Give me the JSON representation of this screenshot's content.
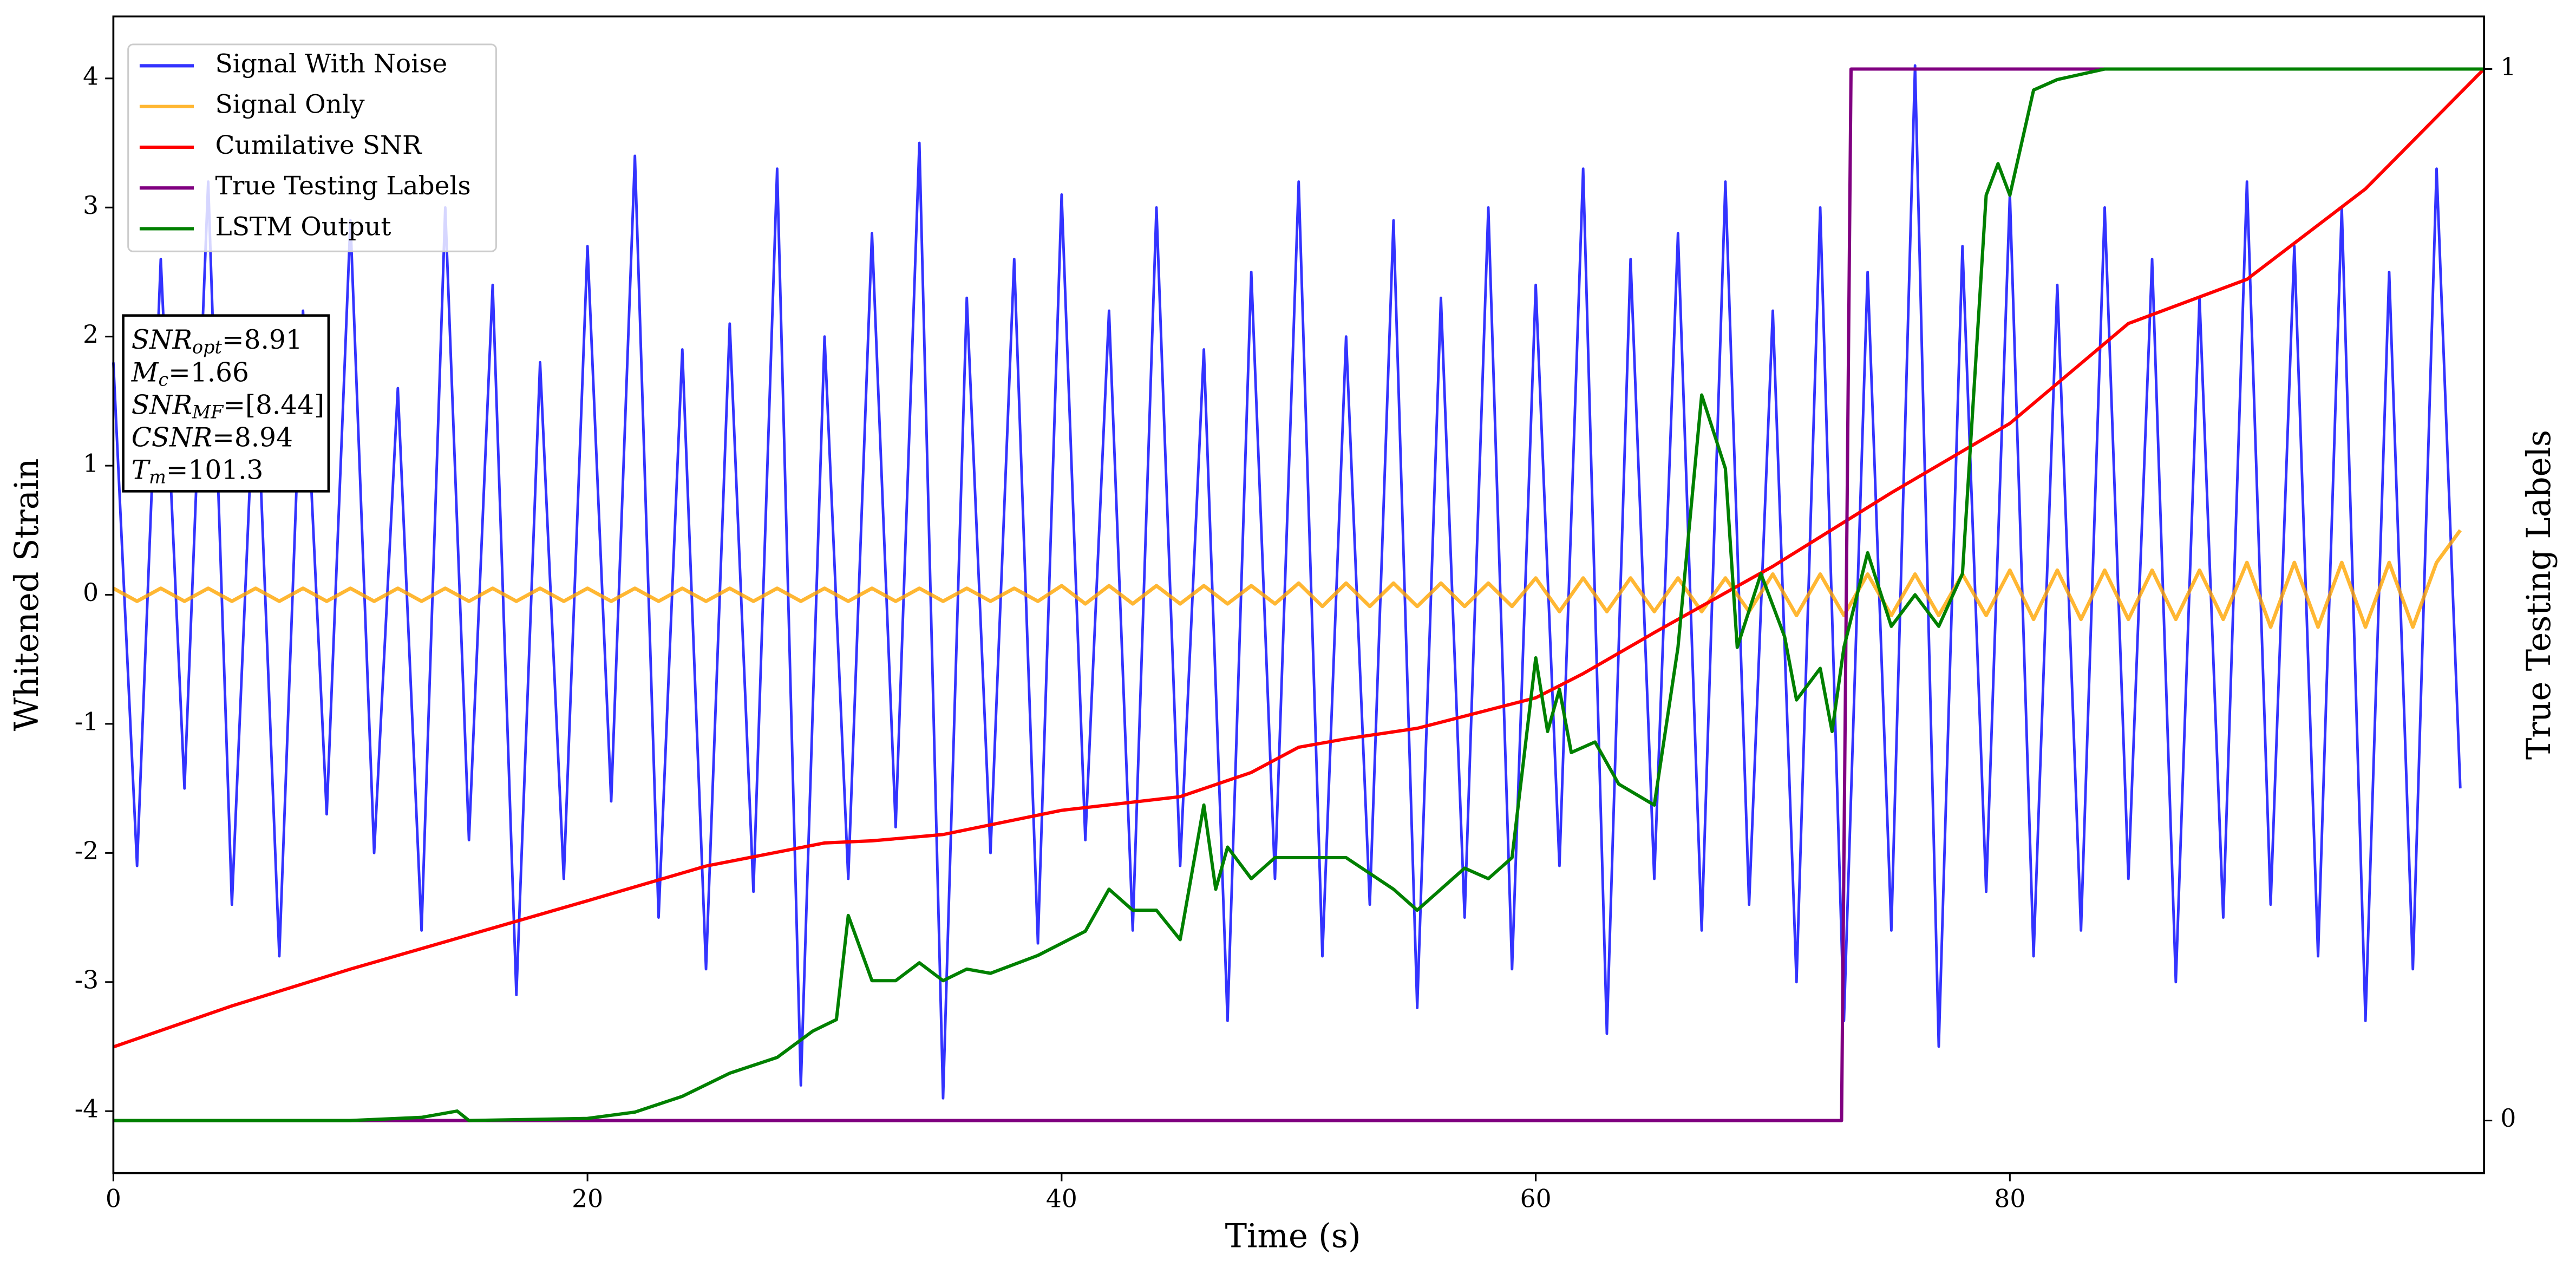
{
  "chart_data": {
    "type": "line",
    "xlabel": "Time (s)",
    "ylabel": "Whitened Strain",
    "y2label": "True Testing Labels",
    "xlim": [
      0,
      100
    ],
    "ylim": [
      -4.48,
      4.48
    ],
    "y2lim": [
      -0.05,
      1.05
    ],
    "xticks": [
      0,
      20,
      40,
      60,
      80
    ],
    "yticks": [
      -4,
      -3,
      -2,
      -1,
      0,
      1,
      2,
      3,
      4
    ],
    "y2ticks": [
      0,
      1
    ],
    "legend": "upper left",
    "x": [
      0,
      1,
      2,
      3,
      4,
      5,
      6,
      7,
      8,
      9,
      10,
      11,
      12,
      13,
      14,
      15,
      16,
      17,
      18,
      19,
      20,
      21,
      22,
      23,
      24,
      25,
      26,
      27,
      28,
      29,
      30,
      31,
      32,
      33,
      34,
      35,
      36,
      37,
      38,
      39,
      40,
      41,
      42,
      43,
      44,
      45,
      46,
      47,
      48,
      49,
      50,
      51,
      52,
      53,
      54,
      55,
      56,
      57,
      58,
      59,
      60,
      61,
      62,
      63,
      64,
      65,
      66,
      67,
      68,
      69,
      70,
      71,
      72,
      73,
      74,
      75,
      76,
      77,
      78,
      79,
      80,
      81,
      82,
      83,
      84,
      85,
      86,
      87,
      88,
      89,
      90,
      91,
      92,
      93,
      94,
      95,
      96,
      97,
      98,
      99
    ],
    "series": [
      {
        "name": "Signal With Noise",
        "color": "#0000ff",
        "values": [
          1.8,
          -2.1,
          2.6,
          -1.5,
          3.2,
          -2.4,
          1.9,
          -2.8,
          2.2,
          -1.7,
          2.9,
          -2.0,
          1.6,
          -2.6,
          3.0,
          -1.9,
          2.4,
          -3.1,
          1.8,
          -2.2,
          2.7,
          -1.6,
          3.4,
          -2.5,
          1.9,
          -2.9,
          2.1,
          -2.3,
          3.3,
          -3.8,
          2.0,
          -2.2,
          2.8,
          -1.8,
          3.5,
          -3.9,
          2.3,
          -2.0,
          2.6,
          -2.7,
          3.1,
          -1.9,
          2.2,
          -2.6,
          3.0,
          -2.1,
          1.9,
          -3.3,
          2.5,
          -2.2,
          3.2,
          -2.8,
          2.0,
          -2.4,
          2.9,
          -3.2,
          2.3,
          -2.5,
          3.0,
          -2.9,
          2.4,
          -2.1,
          3.3,
          -3.4,
          2.6,
          -2.2,
          2.8,
          -2.6,
          3.2,
          -2.4,
          2.2,
          -3.0,
          3.0,
          -3.3,
          2.5,
          -2.6,
          4.1,
          -3.5,
          2.7,
          -2.3,
          3.1,
          -2.8,
          2.4,
          -2.6,
          3.0,
          -2.2,
          2.6,
          -3.0,
          2.3,
          -2.5,
          3.2,
          -2.4,
          2.7,
          -2.8,
          3.0,
          -3.3,
          2.5,
          -2.9,
          3.3,
          -1.5
        ]
      },
      {
        "name": "Signal Only",
        "color": "#ffa500",
        "values": [
          0.05,
          -0.05,
          0.05,
          -0.05,
          0.05,
          -0.05,
          0.05,
          -0.05,
          0.05,
          -0.05,
          0.05,
          -0.05,
          0.05,
          -0.05,
          0.05,
          -0.05,
          0.05,
          -0.05,
          0.05,
          -0.05,
          0.05,
          -0.05,
          0.05,
          -0.05,
          0.05,
          -0.05,
          0.05,
          -0.05,
          0.05,
          -0.05,
          0.05,
          -0.05,
          0.05,
          -0.05,
          0.05,
          -0.05,
          0.05,
          -0.05,
          0.05,
          -0.05,
          0.07,
          -0.07,
          0.07,
          -0.07,
          0.07,
          -0.07,
          0.07,
          -0.07,
          0.07,
          -0.07,
          0.09,
          -0.09,
          0.09,
          -0.09,
          0.09,
          -0.09,
          0.09,
          -0.09,
          0.09,
          -0.09,
          0.13,
          -0.13,
          0.13,
          -0.13,
          0.13,
          -0.13,
          0.13,
          -0.13,
          0.13,
          -0.13,
          0.16,
          -0.16,
          0.16,
          -0.16,
          0.16,
          -0.16,
          0.16,
          -0.16,
          0.16,
          -0.16,
          0.19,
          -0.19,
          0.19,
          -0.19,
          0.19,
          -0.19,
          0.19,
          -0.19,
          0.19,
          -0.19,
          0.25,
          -0.25,
          0.25,
          -0.25,
          0.25,
          -0.25,
          0.25,
          -0.25,
          0.25,
          0.5
        ]
      },
      {
        "name": "Cumilative SNR",
        "color": "#ff0000",
        "axis": "y2",
        "x": [
          0,
          5,
          10,
          20,
          25,
          30,
          32,
          35,
          40,
          45,
          48,
          50,
          52,
          55,
          60,
          62,
          65,
          70,
          75,
          80,
          85,
          90,
          95,
          100
        ],
        "values": [
          0.07,
          0.109,
          0.144,
          0.209,
          0.242,
          0.264,
          0.266,
          0.272,
          0.295,
          0.308,
          0.331,
          0.355,
          0.363,
          0.373,
          0.402,
          0.425,
          0.464,
          0.527,
          0.597,
          0.663,
          0.758,
          0.8,
          0.886,
          1.0
        ]
      },
      {
        "name": "True Testing Labels",
        "color": "#800080",
        "axis": "y2",
        "x": [
          0,
          72.9,
          73.3,
          100
        ],
        "values": [
          0,
          0,
          1,
          1
        ]
      },
      {
        "name": "LSTM Output",
        "color": "#008000",
        "axis": "y2",
        "x": [
          0,
          10,
          13,
          14.5,
          15,
          20,
          22,
          24,
          26,
          28,
          29.5,
          30.5,
          31,
          32,
          33,
          34,
          35,
          36,
          37,
          39,
          41,
          42,
          43,
          44,
          45,
          46,
          46.5,
          47,
          48,
          49,
          50,
          52,
          54,
          55,
          57,
          58,
          59,
          60,
          60.5,
          61,
          61.5,
          62.5,
          63.5,
          65,
          66,
          67,
          68,
          68.5,
          69.5,
          70.5,
          71,
          72,
          72.5,
          73,
          74,
          75,
          76,
          77,
          78,
          79,
          79.5,
          80,
          81,
          82,
          84,
          100
        ],
        "values": [
          0,
          0,
          0.003,
          0.009,
          0,
          0.002,
          0.008,
          0.023,
          0.045,
          0.06,
          0.085,
          0.096,
          0.195,
          0.133,
          0.133,
          0.15,
          0.133,
          0.144,
          0.14,
          0.157,
          0.18,
          0.22,
          0.2,
          0.2,
          0.172,
          0.3,
          0.22,
          0.26,
          0.23,
          0.25,
          0.25,
          0.25,
          0.22,
          0.2,
          0.24,
          0.23,
          0.25,
          0.44,
          0.37,
          0.41,
          0.35,
          0.36,
          0.32,
          0.3,
          0.45,
          0.69,
          0.62,
          0.45,
          0.52,
          0.46,
          0.4,
          0.43,
          0.37,
          0.45,
          0.54,
          0.47,
          0.5,
          0.47,
          0.52,
          0.88,
          0.91,
          0.88,
          0.98,
          0.99,
          1.0,
          1.0
        ]
      }
    ],
    "annotations": [
      {
        "name": "SNR",
        "sub": "opt",
        "text": "=8.91"
      },
      {
        "name": "M",
        "sub": "c",
        "text": "=1.66"
      },
      {
        "name": "SNR",
        "sub": "MF",
        "text": "=[8.44]"
      },
      {
        "name": "CSNR",
        "text": "=8.94"
      },
      {
        "name": "T",
        "sub": "m",
        "text": "=101.3"
      }
    ]
  }
}
